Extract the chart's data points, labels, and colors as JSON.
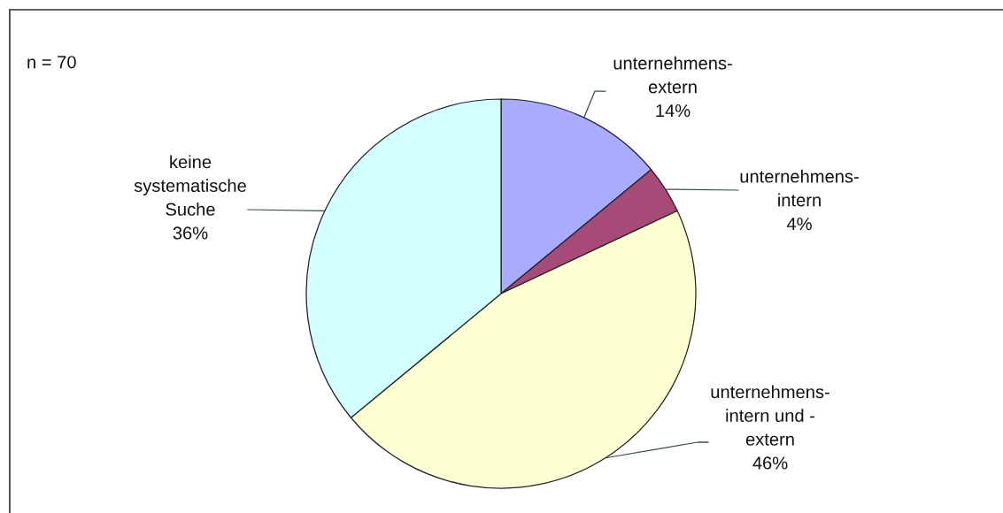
{
  "chart_data": {
    "type": "pie",
    "categories": [
      "unternehmens-\nextern",
      "unternehmens-\nintern",
      "unternehmens-\nintern und -\nextern",
      "keine\nsystematische\nSuche"
    ],
    "values": [
      14,
      4,
      46,
      36
    ],
    "value_labels": [
      "14%",
      "4%",
      "46%",
      "36%"
    ],
    "colors": [
      "#a9abff",
      "#a64b78",
      "#ffffd4",
      "#d2ffff"
    ],
    "annotations": [
      "n = 70"
    ]
  }
}
